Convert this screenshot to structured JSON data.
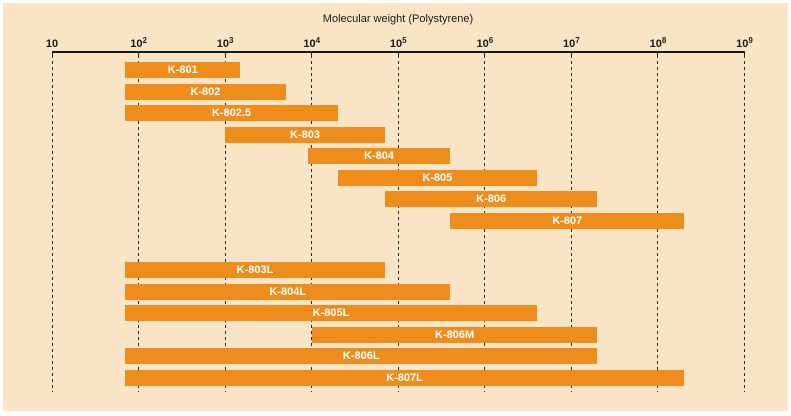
{
  "colors": {
    "background": "#FAE4C6",
    "bar": "#EE8C1C",
    "bar_label": "#FFFFFF",
    "text": "#1A1A1A",
    "grid": "#2A2A2A",
    "frame": "#FFFFFF"
  },
  "chart_data": {
    "type": "bar",
    "variant": "horizontal-range-bars-log-x",
    "title": "Molecular weight (Polystyrene)",
    "x_axis": {
      "scale": "log10",
      "min": 10,
      "max": 1000000000,
      "ticks": [
        {
          "exp": 1,
          "display": "10"
        },
        {
          "exp": 2,
          "display": "10²"
        },
        {
          "exp": 3,
          "display": "10³"
        },
        {
          "exp": 4,
          "display": "10⁴"
        },
        {
          "exp": 5,
          "display": "10⁵"
        },
        {
          "exp": 6,
          "display": "10⁶"
        },
        {
          "exp": 7,
          "display": "10⁷"
        },
        {
          "exp": 8,
          "display": "10⁸"
        },
        {
          "exp": 9,
          "display": "10⁹"
        }
      ]
    },
    "grid": "dotted-vertical-line-per-decade",
    "legend": "none",
    "groups": [
      {
        "name": "standard-columns",
        "rows": [
          {
            "label": "K-801",
            "mw_range": [
              70,
              1500
            ]
          },
          {
            "label": "K-802",
            "mw_range": [
              70,
              5000
            ]
          },
          {
            "label": "K-802.5",
            "mw_range": [
              70,
              20000
            ]
          },
          {
            "label": "K-803",
            "mw_range": [
              1000,
              70000
            ]
          },
          {
            "label": "K-804",
            "mw_range": [
              9000,
              400000
            ]
          },
          {
            "label": "K-805",
            "mw_range": [
              20000,
              4000000
            ]
          },
          {
            "label": "K-806",
            "mw_range": [
              70000,
              20000000
            ]
          },
          {
            "label": "K-807",
            "mw_range": [
              400000,
              200000000
            ]
          }
        ]
      },
      {
        "name": "linear-mixed-columns",
        "rows": [
          {
            "label": "K-803L",
            "mw_range": [
              70,
              70000
            ]
          },
          {
            "label": "K-804L",
            "mw_range": [
              70,
              400000
            ]
          },
          {
            "label": "K-805L",
            "mw_range": [
              70,
              4000000
            ]
          },
          {
            "label": "K-806M",
            "mw_range": [
              10000,
              20000000
            ]
          },
          {
            "label": "K-806L",
            "mw_range": [
              70,
              20000000
            ]
          },
          {
            "label": "K-807L",
            "mw_range": [
              70,
              200000000
            ]
          }
        ]
      }
    ]
  }
}
